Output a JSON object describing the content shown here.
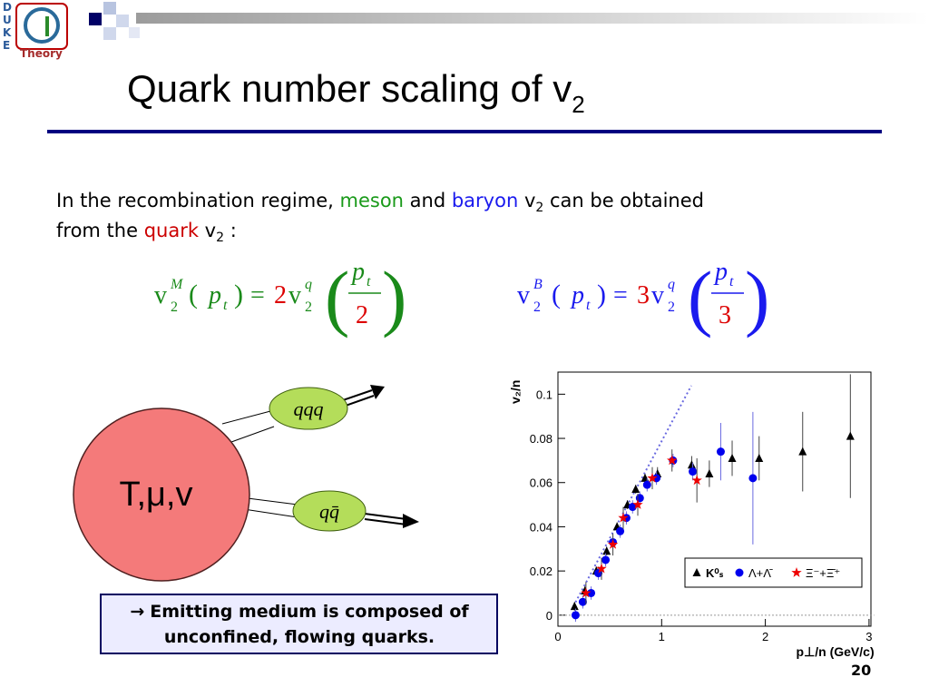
{
  "logo": {
    "letters": [
      "D",
      "U",
      "K",
      "E"
    ],
    "name": "Theory"
  },
  "title": {
    "text": "Quark number scaling of v",
    "subscript": "2"
  },
  "intro": {
    "line1": [
      "In the recombination regime, ",
      "meson",
      " and ",
      "baryon",
      " v",
      "2",
      " can be obtained"
    ],
    "line2": [
      "from the ",
      "quark",
      " v",
      "2",
      " :"
    ]
  },
  "formulas": {
    "meson": {
      "lhs": "v",
      "sup": "M",
      "sub": "2",
      "open": "(",
      "arg": "p",
      "argsub": "t",
      "close": ")",
      "eq": "=",
      "factor": "2",
      "rhs": "v",
      "rsup": "q",
      "rsub": "2",
      "num": "p",
      "numsub": "t",
      "den": "2"
    },
    "baryon": {
      "lhs": "v",
      "sup": "B",
      "sub": "2",
      "open": "(",
      "arg": "p",
      "argsub": "t",
      "close": ")",
      "eq": "=",
      "factor": "3",
      "rhs": "v",
      "rsup": "q",
      "rsub": "2",
      "num": "p",
      "numsub": "t",
      "den": "3"
    }
  },
  "diagram": {
    "source": "T,μ,v",
    "baryon": "qqq",
    "meson": "qq̄"
  },
  "note": {
    "arrow": "→",
    "line1": "Emitting medium is composed of",
    "line2": "unconfined, flowing quarks."
  },
  "page_number": "20",
  "chart_data": {
    "type": "scatter",
    "ylabel": "v₂/n",
    "xlabel": "p⊥/n (GeV/c)",
    "xlim": [
      0,
      3.05
    ],
    "ylim": [
      -0.005,
      0.11
    ],
    "xticks": [
      0,
      1,
      2,
      3
    ],
    "yticks": [
      0,
      0.02,
      0.04,
      0.06,
      0.08,
      0.1
    ],
    "series": [
      {
        "name": "K⁰ₛ",
        "color": "#000000",
        "marker": "triangle",
        "x": [
          0.16,
          0.26,
          0.37,
          0.47,
          0.57,
          0.67,
          0.75,
          0.84,
          0.96,
          1.29,
          1.46,
          1.68,
          1.94,
          2.36,
          2.82
        ],
        "values": [
          0.004,
          0.011,
          0.02,
          0.029,
          0.04,
          0.05,
          0.057,
          0.062,
          0.064,
          0.068,
          0.064,
          0.071,
          0.071,
          0.074,
          0.081
        ],
        "errors": [
          0.002,
          0.002,
          0.002,
          0.002,
          0.002,
          0.002,
          0.002,
          0.002,
          0.003,
          0.004,
          0.006,
          0.008,
          0.01,
          0.018,
          0.028
        ]
      },
      {
        "name": "Λ+Λ̄",
        "color": "#0000ee",
        "marker": "circle",
        "x": [
          0.17,
          0.24,
          0.32,
          0.39,
          0.46,
          0.53,
          0.6,
          0.66,
          0.72,
          0.79,
          0.86,
          0.95,
          1.11,
          1.3,
          1.57,
          1.88
        ],
        "values": [
          0.0,
          0.006,
          0.01,
          0.019,
          0.025,
          0.033,
          0.038,
          0.044,
          0.049,
          0.053,
          0.059,
          0.062,
          0.07,
          0.065,
          0.074,
          0.062
        ],
        "errors": [
          0.003,
          0.003,
          0.003,
          0.003,
          0.003,
          0.003,
          0.003,
          0.003,
          0.003,
          0.003,
          0.003,
          0.003,
          0.003,
          0.004,
          0.013,
          0.03
        ]
      },
      {
        "name": "Ξ⁻+Ξ̄⁺",
        "color": "#ee0000",
        "marker": "star",
        "x": [
          0.27,
          0.42,
          0.53,
          0.63,
          0.77,
          0.91,
          1.1,
          1.34
        ],
        "values": [
          0.01,
          0.021,
          0.032,
          0.044,
          0.05,
          0.062,
          0.07,
          0.061
        ],
        "errors": [
          0.005,
          0.005,
          0.005,
          0.005,
          0.005,
          0.005,
          0.005,
          0.01
        ]
      }
    ]
  }
}
